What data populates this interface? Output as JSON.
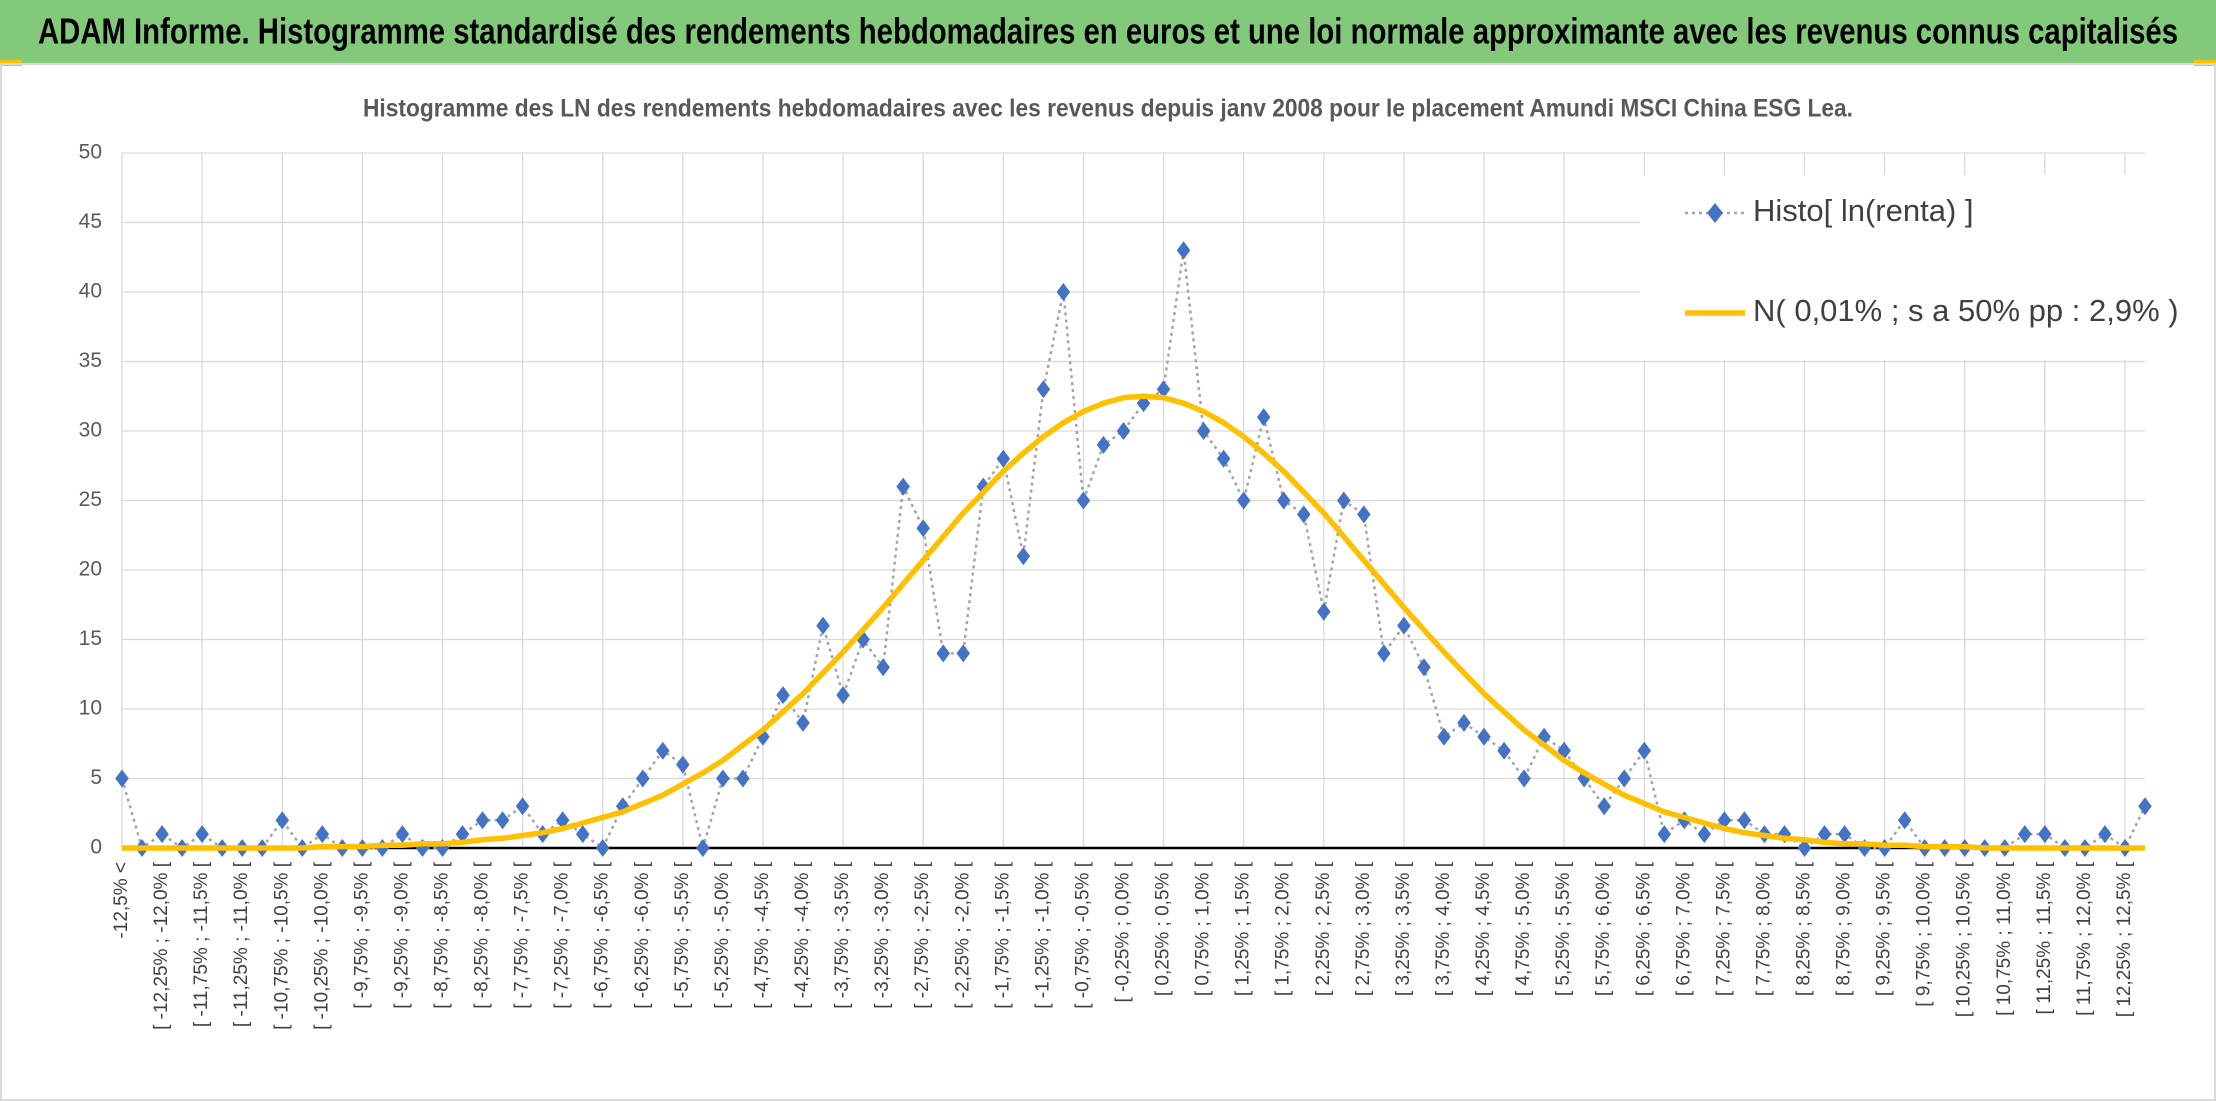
{
  "header": {
    "title": "ADAM Informe. Histogramme standardisé des rendements hebdomadaires en euros et une loi normale approximante avec les revenus connus capitalisés"
  },
  "chart_data": {
    "type": "line",
    "title": "Histogramme des LN des rendements hebdomadaires avec les revenus depuis janv 2008 pour le placement Amundi MSCI China ESG Lea.",
    "categories": [
      "-12,5% <",
      null,
      "[ -12,25% ; -12,0% [",
      null,
      "[ -11,75% ; -11,5% [",
      null,
      "[ -11,25% ; -11,0% [",
      null,
      "[ -10,75% ; -10,5% [",
      null,
      "[ -10,25% ; -10,0% [",
      null,
      "[ -9,75% ; -9,5% [",
      null,
      "[ -9,25% ; -9,0% [",
      null,
      "[ -8,75% ; -8,5% [",
      null,
      "[ -8,25% ; -8,0% [",
      null,
      "[ -7,75% ; -7,5% [",
      null,
      "[ -7,25% ; -7,0% [",
      null,
      "[ -6,75% ; -6,5% [",
      null,
      "[ -6,25% ; -6,0% [",
      null,
      "[ -5,75% ; -5,5% [",
      null,
      "[ -5,25% ; -5,0% [",
      null,
      "[ -4,75% ; -4,5% [",
      null,
      "[ -4,25% ; -4,0% [",
      null,
      "[ -3,75% ; -3,5% [",
      null,
      "[ -3,25% ; -3,0% [",
      null,
      "[ -2,75% ; -2,5% [",
      null,
      "[ -2,25% ; -2,0% [",
      null,
      "[ -1,75% ; -1,5% [",
      null,
      "[ -1,25% ; -1,0% [",
      null,
      "[ -0,75% ; -0,5% [",
      null,
      "[ -0,25% ; 0,0% [",
      null,
      "[ 0,25% ; 0,5% [",
      null,
      "[ 0,75% ; 1,0% [",
      null,
      "[ 1,25% ; 1,5% [",
      null,
      "[ 1,75% ; 2,0% [",
      null,
      "[ 2,25% ; 2,5% [",
      null,
      "[ 2,75% ; 3,0% [",
      null,
      "[ 3,25% ; 3,5% [",
      null,
      "[ 3,75% ; 4,0% [",
      null,
      "[ 4,25% ; 4,5% [",
      null,
      "[ 4,75% ; 5,0% [",
      null,
      "[ 5,25% ; 5,5% [",
      null,
      "[ 5,75% ; 6,0% [",
      null,
      "[ 6,25% ; 6,5% [",
      null,
      "[ 6,75% ; 7,0% [",
      null,
      "[ 7,25% ; 7,5% [",
      null,
      "[ 7,75% ; 8,0% [",
      null,
      "[ 8,25% ; 8,5% [",
      null,
      "[ 8,75% ; 9,0% [",
      null,
      "[ 9,25% ; 9,5% [",
      null,
      "[ 9,75% ; 10,0% [",
      null,
      "[ 10,25% ; 10,5% [",
      null,
      "[ 10,75% ; 11,0% [",
      null,
      "[ 11,25% ; 11,5% [",
      null,
      "[ 11,75% ; 12,0% [",
      null,
      "[ 12,25% ; 12,5% [",
      null
    ],
    "series": [
      {
        "name": "Histo[ ln(renta) ]",
        "color": "#4472c4",
        "line_color": "#a5a5a5",
        "marker": "diamond",
        "values": [
          5,
          0,
          1,
          0,
          1,
          0,
          0,
          0,
          2,
          0,
          1,
          0,
          0,
          0,
          1,
          0,
          0,
          1,
          2,
          2,
          3,
          1,
          2,
          1,
          0,
          3,
          5,
          7,
          6,
          0,
          5,
          5,
          8,
          11,
          9,
          16,
          11,
          15,
          13,
          26,
          23,
          14,
          14,
          26,
          28,
          21,
          33,
          40,
          25,
          29,
          30,
          32,
          33,
          43,
          30,
          28,
          25,
          31,
          25,
          24,
          17,
          25,
          24,
          14,
          16,
          13,
          8,
          9,
          8,
          7,
          5,
          8,
          7,
          5,
          3,
          5,
          7,
          1,
          2,
          1,
          2,
          2,
          1,
          1,
          0,
          1,
          1,
          0,
          0,
          2,
          0,
          0,
          0,
          0,
          0,
          1,
          1,
          0,
          0,
          1,
          0,
          3
        ]
      },
      {
        "name": "N( 0,01% ; s a 50% pp : 2,9% )",
        "color": "#ffc000",
        "values": [
          0,
          0,
          0,
          0,
          0,
          0,
          0,
          0,
          0,
          0,
          0.1,
          0.1,
          0.1,
          0.2,
          0.2,
          0.3,
          0.3,
          0.4,
          0.6,
          0.7,
          0.9,
          1.1,
          1.4,
          1.8,
          2.2,
          2.6,
          3.2,
          3.8,
          4.6,
          5.4,
          6.3,
          7.4,
          8.5,
          9.8,
          11.1,
          12.6,
          14.1,
          15.7,
          17.3,
          19.0,
          20.7,
          22.4,
          24.1,
          25.6,
          27.1,
          28.4,
          29.6,
          30.6,
          31.4,
          32.0,
          32.4,
          32.5,
          32.4,
          32.0,
          31.4,
          30.6,
          29.6,
          28.4,
          27.1,
          25.6,
          24.1,
          22.4,
          20.7,
          19.0,
          17.3,
          15.7,
          14.1,
          12.6,
          11.1,
          9.8,
          8.5,
          7.4,
          6.3,
          5.4,
          4.6,
          3.8,
          3.2,
          2.6,
          2.2,
          1.8,
          1.4,
          1.1,
          0.9,
          0.7,
          0.6,
          0.4,
          0.3,
          0.3,
          0.2,
          0.2,
          0.1,
          0.1,
          0.1,
          0,
          0,
          0,
          0,
          0,
          0,
          0,
          0,
          0
        ]
      }
    ],
    "ylim": [
      0,
      50
    ],
    "yticks": [
      0,
      5,
      10,
      15,
      20,
      25,
      30,
      35,
      40,
      45,
      50
    ],
    "grid": true,
    "legend": "upper right"
  }
}
